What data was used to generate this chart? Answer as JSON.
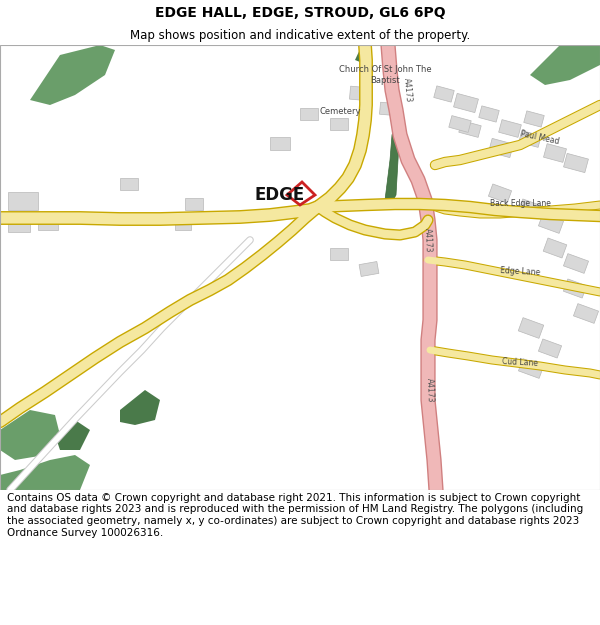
{
  "title": "EDGE HALL, EDGE, STROUD, GL6 6PQ",
  "subtitle": "Map shows position and indicative extent of the property.",
  "footer": "Contains OS data © Crown copyright and database right 2021. This information is subject to Crown copyright and database rights 2023 and is reproduced with the permission of HM Land Registry. The polygons (including the associated geometry, namely x, y co-ordinates) are subject to Crown copyright and database rights 2023 Ordnance Survey 100026316.",
  "title_fontsize": 10,
  "subtitle_fontsize": 8.5,
  "footer_fontsize": 7.5,
  "map_bg": "#f5f4f0",
  "road_yellow": "#f5e8a0",
  "road_yellow_edge": "#c8a800",
  "road_pink": "#f0b8b8",
  "road_pink_edge": "#d08080",
  "road_white": "#ffffff",
  "road_white_edge": "#cccccc",
  "green_color": "#6a9e6a",
  "green_dark": "#4a7a4a",
  "building_fill": "#d8d8d8",
  "building_edge": "#b8b8b8",
  "red_outline": "#cc2222"
}
